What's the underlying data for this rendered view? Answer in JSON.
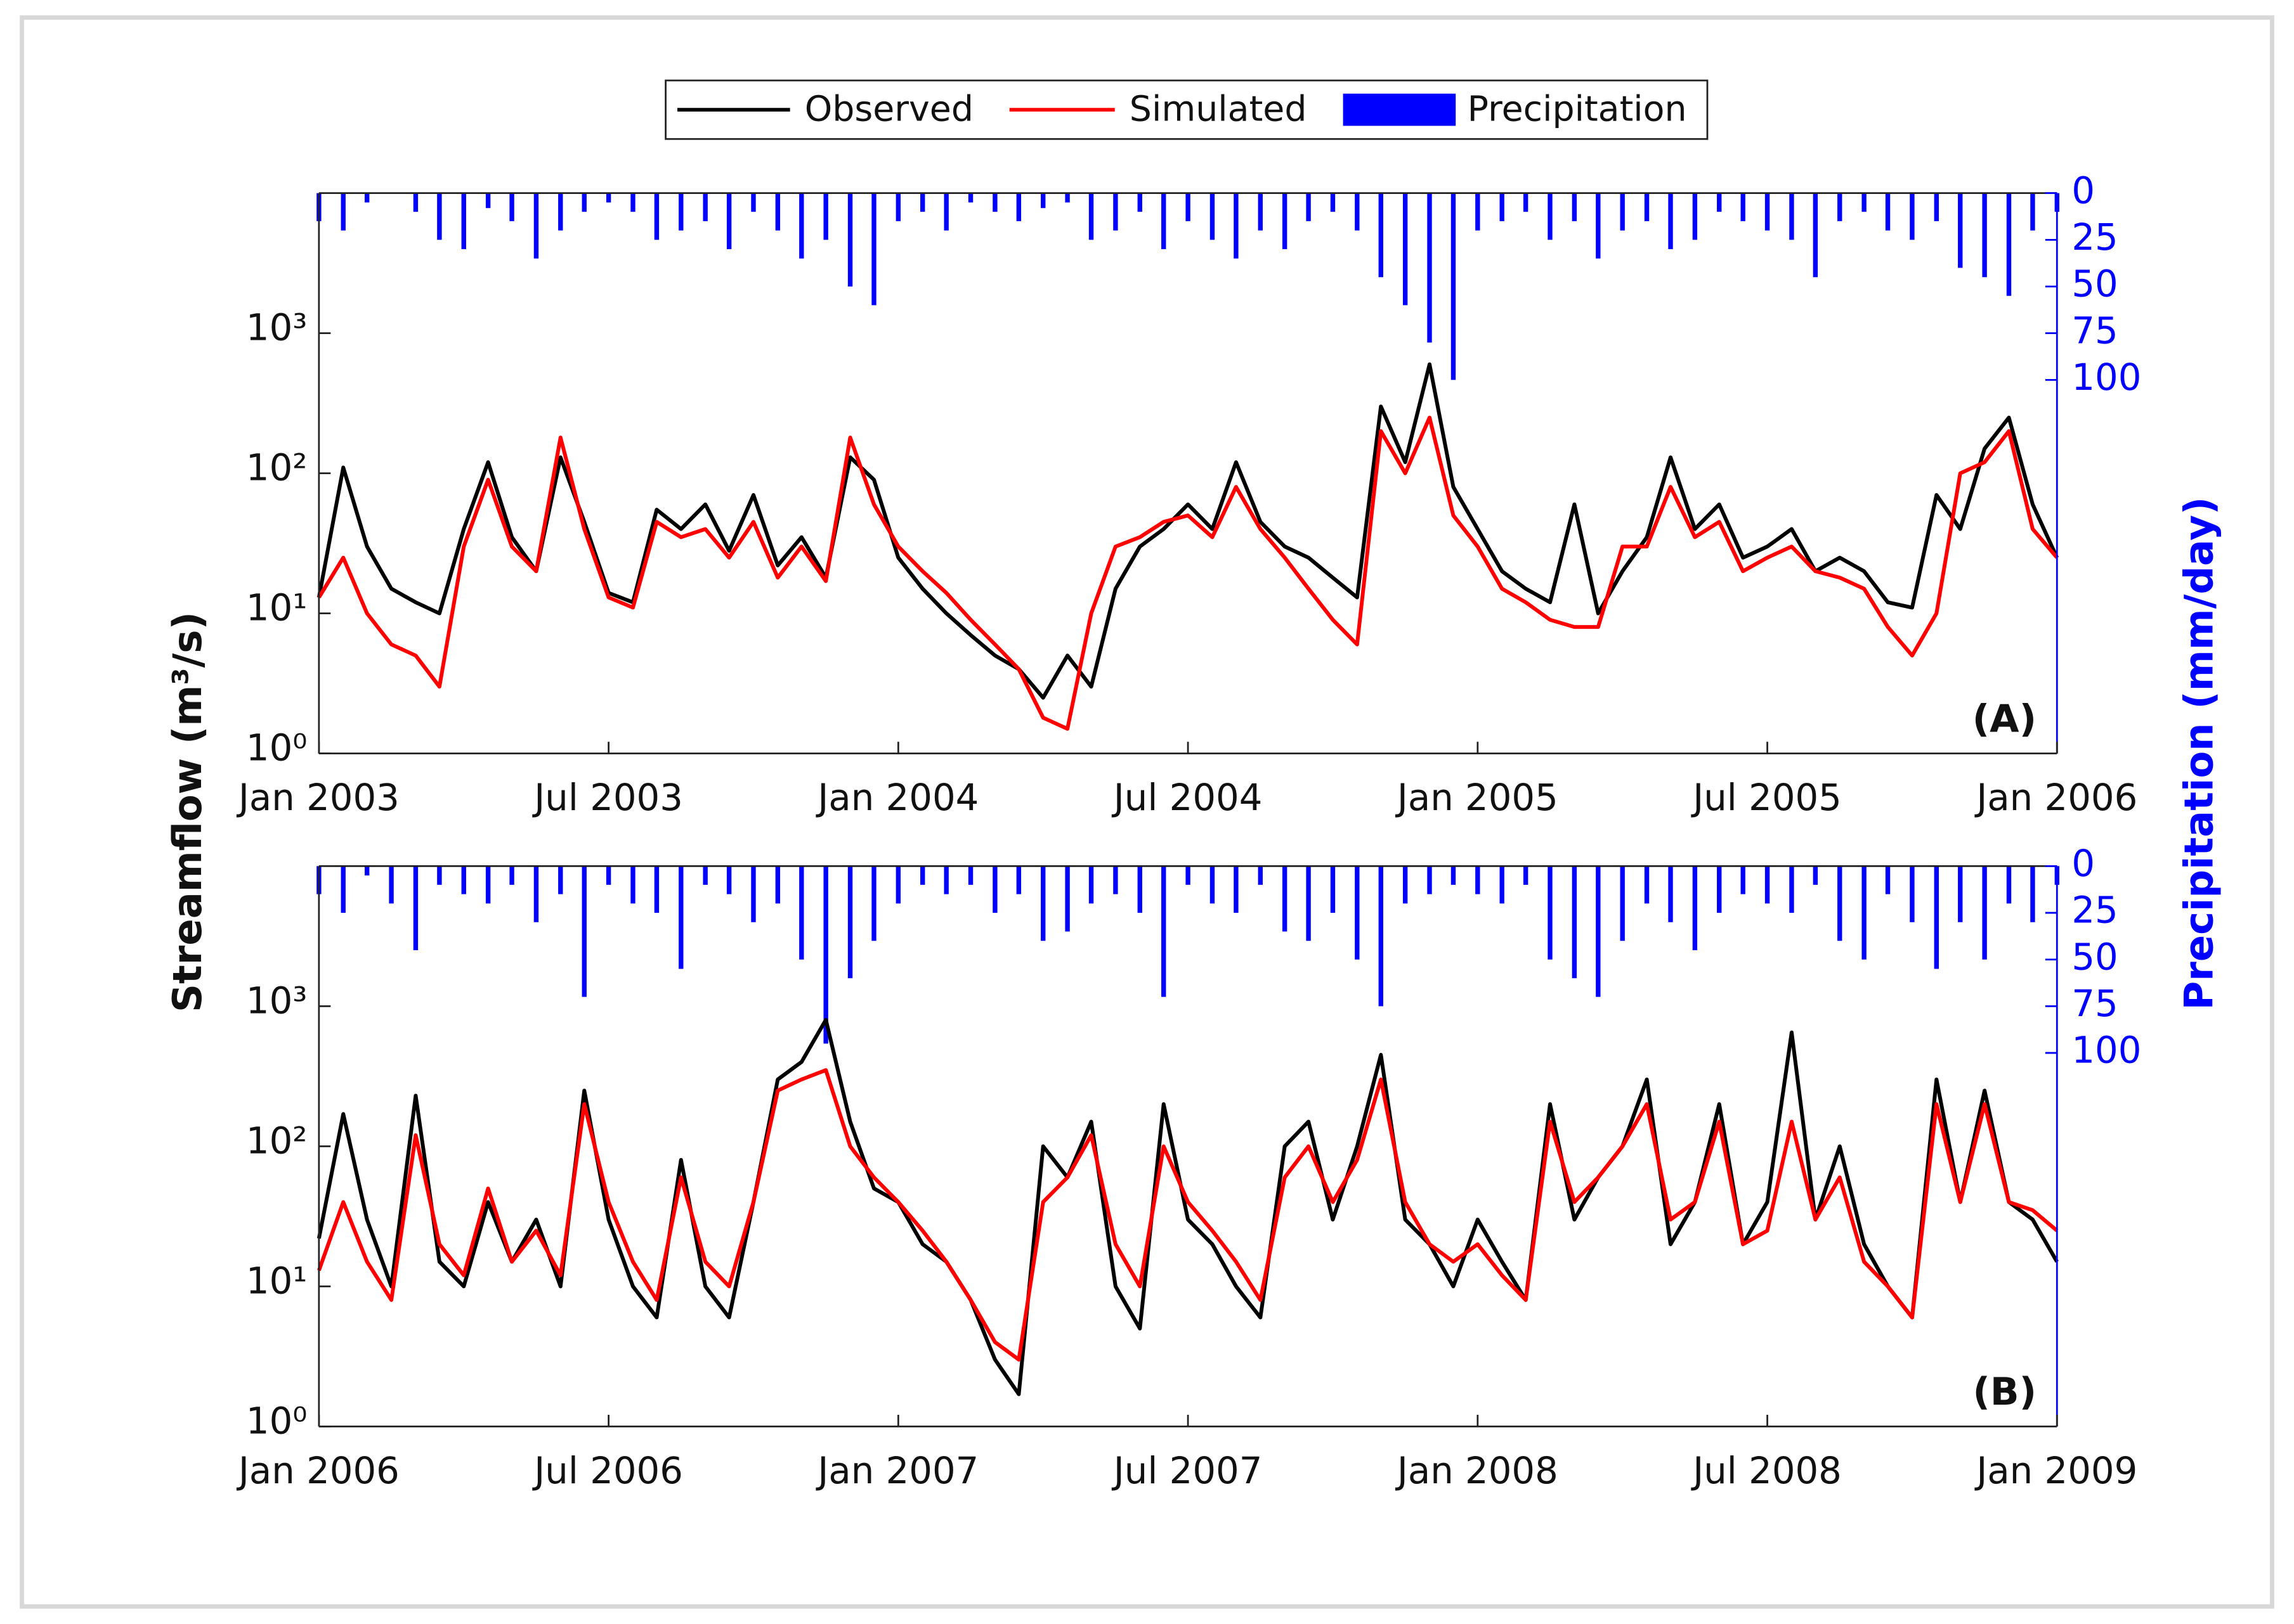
{
  "chart_data": [
    {
      "type": "line",
      "y_label": "Streamflow (m³/s)",
      "y2_label": "Precipitation (mm/day)",
      "annotation": "(A)",
      "legend": "top",
      "xlim": [
        2003,
        2006
      ],
      "xticks": [
        {
          "value": 2003,
          "label": "Jan 2003"
        },
        {
          "value": 2003.5,
          "label": "Jul 2003"
        },
        {
          "value": 2004,
          "label": "Jan 2004"
        },
        {
          "value": 2004.5,
          "label": "Jul 2004"
        },
        {
          "value": 2005,
          "label": "Jan 2005"
        },
        {
          "value": 2005.5,
          "label": "Jul 2005"
        },
        {
          "value": 2006,
          "label": "Jan 2006"
        }
      ],
      "ylim": [
        1,
        10000
      ],
      "yscale": "log",
      "yticks": [
        {
          "value": 1,
          "label": "10⁰"
        },
        {
          "value": 10,
          "label": "10¹"
        },
        {
          "value": 100,
          "label": "10²"
        },
        {
          "value": 1000,
          "label": "10³"
        }
      ],
      "y2lim": [
        0,
        300
      ],
      "y2_reversed": true,
      "y2_color": "#0000ff",
      "y2ticks": [
        0,
        25,
        50,
        75,
        100
      ],
      "x": [
        2003,
        2003.042,
        2003.083,
        2003.125,
        2003.167,
        2003.208,
        2003.25,
        2003.292,
        2003.333,
        2003.375,
        2003.417,
        2003.458,
        2003.5,
        2003.542,
        2003.583,
        2003.625,
        2003.667,
        2003.708,
        2003.75,
        2003.792,
        2003.833,
        2003.875,
        2003.917,
        2003.958,
        2004,
        2004.042,
        2004.083,
        2004.125,
        2004.167,
        2004.208,
        2004.25,
        2004.292,
        2004.333,
        2004.375,
        2004.417,
        2004.458,
        2004.5,
        2004.542,
        2004.583,
        2004.625,
        2004.667,
        2004.708,
        2004.75,
        2004.792,
        2004.833,
        2004.875,
        2004.917,
        2004.958,
        2005,
        2005.042,
        2005.083,
        2005.125,
        2005.167,
        2005.208,
        2005.25,
        2005.292,
        2005.333,
        2005.375,
        2005.417,
        2005.458,
        2005.5,
        2005.542,
        2005.583,
        2005.625,
        2005.667,
        2005.708,
        2005.75,
        2005.792,
        2005.833,
        2005.875,
        2005.917,
        2005.958,
        2006
      ],
      "series": [
        {
          "name": "Observed",
          "color": "#000000",
          "values": [
            13,
            110,
            30,
            15,
            12,
            10,
            40,
            120,
            35,
            20,
            130,
            45,
            14,
            12,
            55,
            40,
            60,
            28,
            70,
            22,
            35,
            18,
            130,
            90,
            25,
            15,
            10,
            7,
            5,
            4,
            2.5,
            5,
            3,
            15,
            30,
            40,
            60,
            40,
            120,
            45,
            30,
            25,
            18,
            13,
            300,
            120,
            600,
            80,
            40,
            20,
            15,
            12,
            60,
            10,
            20,
            35,
            130,
            40,
            60,
            25,
            30,
            40,
            20,
            25,
            20,
            12,
            11,
            70,
            40,
            150,
            250,
            60,
            25
          ]
        },
        {
          "name": "Simulated",
          "color": "#ff0000",
          "values": [
            13,
            25,
            10,
            6,
            5,
            3,
            30,
            90,
            30,
            20,
            180,
            40,
            13,
            11,
            45,
            35,
            40,
            25,
            45,
            18,
            30,
            17,
            180,
            60,
            30,
            20,
            14,
            9,
            6,
            4,
            1.8,
            1.5,
            10,
            30,
            35,
            45,
            50,
            35,
            80,
            40,
            25,
            15,
            9,
            6,
            200,
            100,
            250,
            50,
            30,
            15,
            12,
            9,
            8,
            8,
            30,
            30,
            80,
            35,
            45,
            20,
            25,
            30,
            20,
            18,
            15,
            8,
            5,
            10,
            100,
            120,
            200,
            40,
            25
          ]
        },
        {
          "name": "Precipitation",
          "color": "#0000ff",
          "axis": "y2",
          "kind": "bar",
          "values": [
            15,
            20,
            5,
            0,
            10,
            25,
            30,
            8,
            15,
            35,
            20,
            10,
            5,
            10,
            25,
            20,
            15,
            30,
            10,
            20,
            35,
            25,
            50,
            60,
            15,
            10,
            20,
            5,
            10,
            15,
            8,
            5,
            25,
            20,
            10,
            30,
            15,
            25,
            35,
            20,
            30,
            15,
            10,
            20,
            45,
            60,
            80,
            100,
            20,
            15,
            10,
            25,
            15,
            35,
            20,
            15,
            30,
            25,
            10,
            15,
            20,
            25,
            45,
            15,
            10,
            20,
            25,
            15,
            40,
            45,
            55,
            20,
            10
          ]
        }
      ]
    },
    {
      "type": "line",
      "annotation": "(B)",
      "xlim": [
        2006,
        2009
      ],
      "xticks": [
        {
          "value": 2006,
          "label": "Jan 2006"
        },
        {
          "value": 2006.5,
          "label": "Jul 2006"
        },
        {
          "value": 2007,
          "label": "Jan 2007"
        },
        {
          "value": 2007.5,
          "label": "Jul 2007"
        },
        {
          "value": 2008,
          "label": "Jan 2008"
        },
        {
          "value": 2008.5,
          "label": "Jul 2008"
        },
        {
          "value": 2009,
          "label": "Jan 2009"
        }
      ],
      "ylim": [
        1,
        10000
      ],
      "yscale": "log",
      "yticks": [
        {
          "value": 1,
          "label": "10⁰"
        },
        {
          "value": 10,
          "label": "10¹"
        },
        {
          "value": 100,
          "label": "10²"
        },
        {
          "value": 1000,
          "label": "10³"
        }
      ],
      "y2lim": [
        0,
        300
      ],
      "y2_reversed": true,
      "y2_color": "#0000ff",
      "y2ticks": [
        0,
        25,
        50,
        75,
        100
      ],
      "x": [
        2006,
        2006.042,
        2006.083,
        2006.125,
        2006.167,
        2006.208,
        2006.25,
        2006.292,
        2006.333,
        2006.375,
        2006.417,
        2006.458,
        2006.5,
        2006.542,
        2006.583,
        2006.625,
        2006.667,
        2006.708,
        2006.75,
        2006.792,
        2006.833,
        2006.875,
        2006.917,
        2006.958,
        2007,
        2007.042,
        2007.083,
        2007.125,
        2007.167,
        2007.208,
        2007.25,
        2007.292,
        2007.333,
        2007.375,
        2007.417,
        2007.458,
        2007.5,
        2007.542,
        2007.583,
        2007.625,
        2007.667,
        2007.708,
        2007.75,
        2007.792,
        2007.833,
        2007.875,
        2007.917,
        2007.958,
        2008,
        2008.042,
        2008.083,
        2008.125,
        2008.167,
        2008.208,
        2008.25,
        2008.292,
        2008.333,
        2008.375,
        2008.417,
        2008.458,
        2008.5,
        2008.542,
        2008.583,
        2008.625,
        2008.667,
        2008.708,
        2008.75,
        2008.792,
        2008.833,
        2008.875,
        2008.917,
        2008.958,
        2009
      ],
      "series": [
        {
          "color": "#000000",
          "values": [
            22,
            170,
            30,
            10,
            230,
            15,
            10,
            40,
            15,
            30,
            10,
            250,
            30,
            10,
            6,
            80,
            10,
            6,
            40,
            300,
            400,
            800,
            150,
            50,
            40,
            20,
            15,
            8,
            3,
            1.7,
            100,
            60,
            150,
            10,
            5,
            200,
            30,
            20,
            10,
            6,
            100,
            150,
            30,
            100,
            450,
            30,
            20,
            10,
            30,
            15,
            8,
            200,
            30,
            60,
            100,
            300,
            20,
            40,
            200,
            20,
            40,
            650,
            30,
            100,
            20,
            10,
            6,
            300,
            40,
            250,
            40,
            30,
            15
          ]
        },
        {
          "color": "#ff0000",
          "values": [
            13,
            40,
            15,
            8,
            120,
            20,
            12,
            50,
            15,
            25,
            12,
            200,
            40,
            15,
            8,
            60,
            15,
            10,
            40,
            250,
            300,
            350,
            100,
            60,
            40,
            25,
            15,
            8,
            4,
            3,
            40,
            60,
            120,
            20,
            10,
            100,
            40,
            25,
            15,
            8,
            60,
            100,
            40,
            80,
            300,
            40,
            20,
            15,
            20,
            12,
            8,
            150,
            40,
            60,
            100,
            200,
            30,
            40,
            150,
            20,
            25,
            150,
            30,
            60,
            15,
            10,
            6,
            200,
            40,
            200,
            40,
            35,
            25
          ]
        },
        {
          "color": "#0000ff",
          "axis": "y2",
          "kind": "bar",
          "values": [
            15,
            25,
            5,
            20,
            45,
            10,
            15,
            20,
            10,
            30,
            15,
            70,
            10,
            20,
            25,
            55,
            10,
            15,
            30,
            20,
            50,
            95,
            60,
            40,
            20,
            10,
            15,
            10,
            25,
            15,
            40,
            35,
            20,
            15,
            25,
            70,
            10,
            20,
            25,
            10,
            35,
            40,
            25,
            50,
            75,
            20,
            15,
            10,
            15,
            20,
            10,
            50,
            60,
            70,
            40,
            20,
            30,
            45,
            25,
            15,
            20,
            25,
            10,
            40,
            50,
            15,
            30,
            55,
            30,
            50,
            20,
            30,
            10
          ]
        }
      ]
    }
  ]
}
